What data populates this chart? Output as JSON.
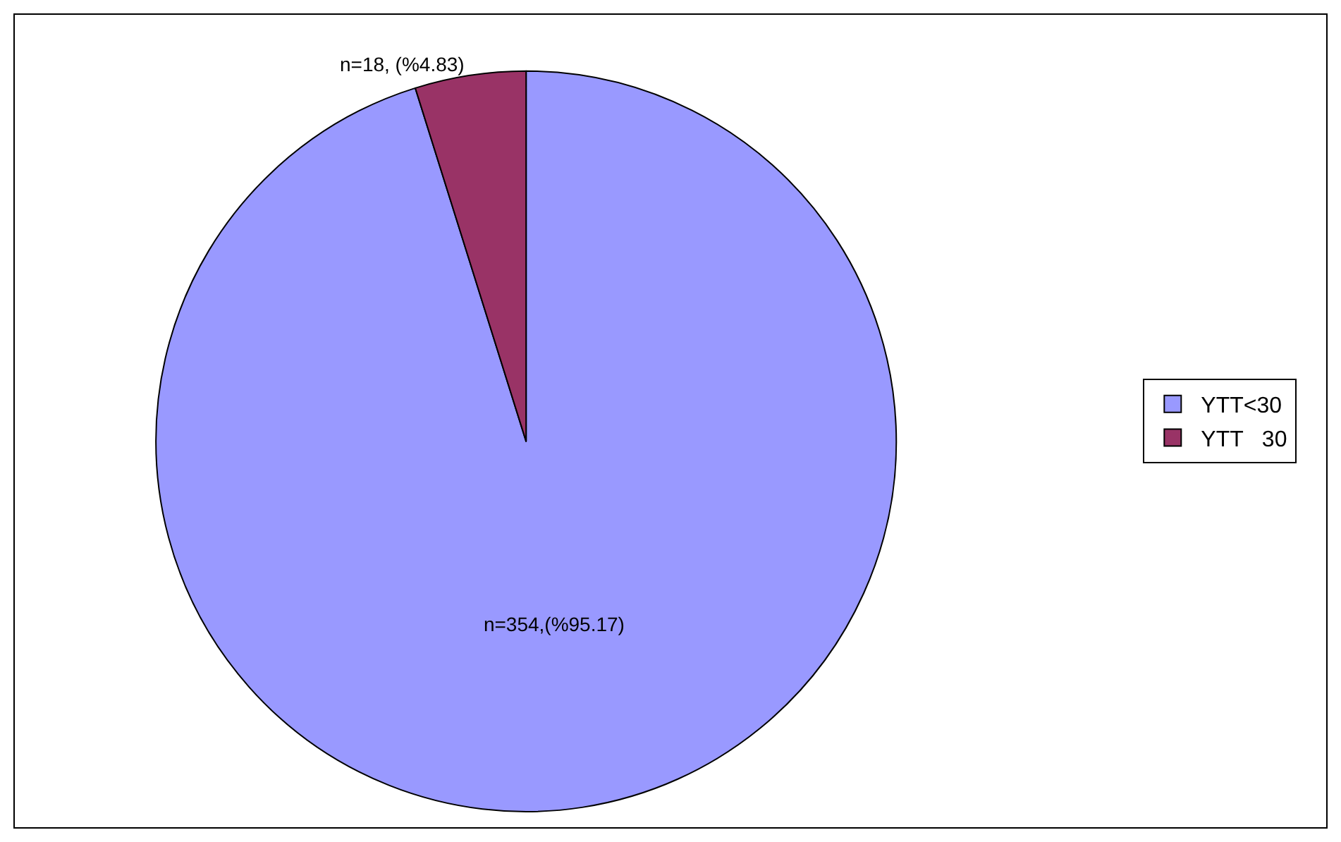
{
  "chart_data": {
    "type": "pie",
    "categories": [
      "YTT<30",
      "YTT   30"
    ],
    "values": [
      354,
      18
    ],
    "colors": [
      "#9999ff",
      "#993366"
    ],
    "value_labels": [
      "n=354,(%95.17)",
      "n=18, (%4.83)"
    ],
    "legend": "right"
  }
}
